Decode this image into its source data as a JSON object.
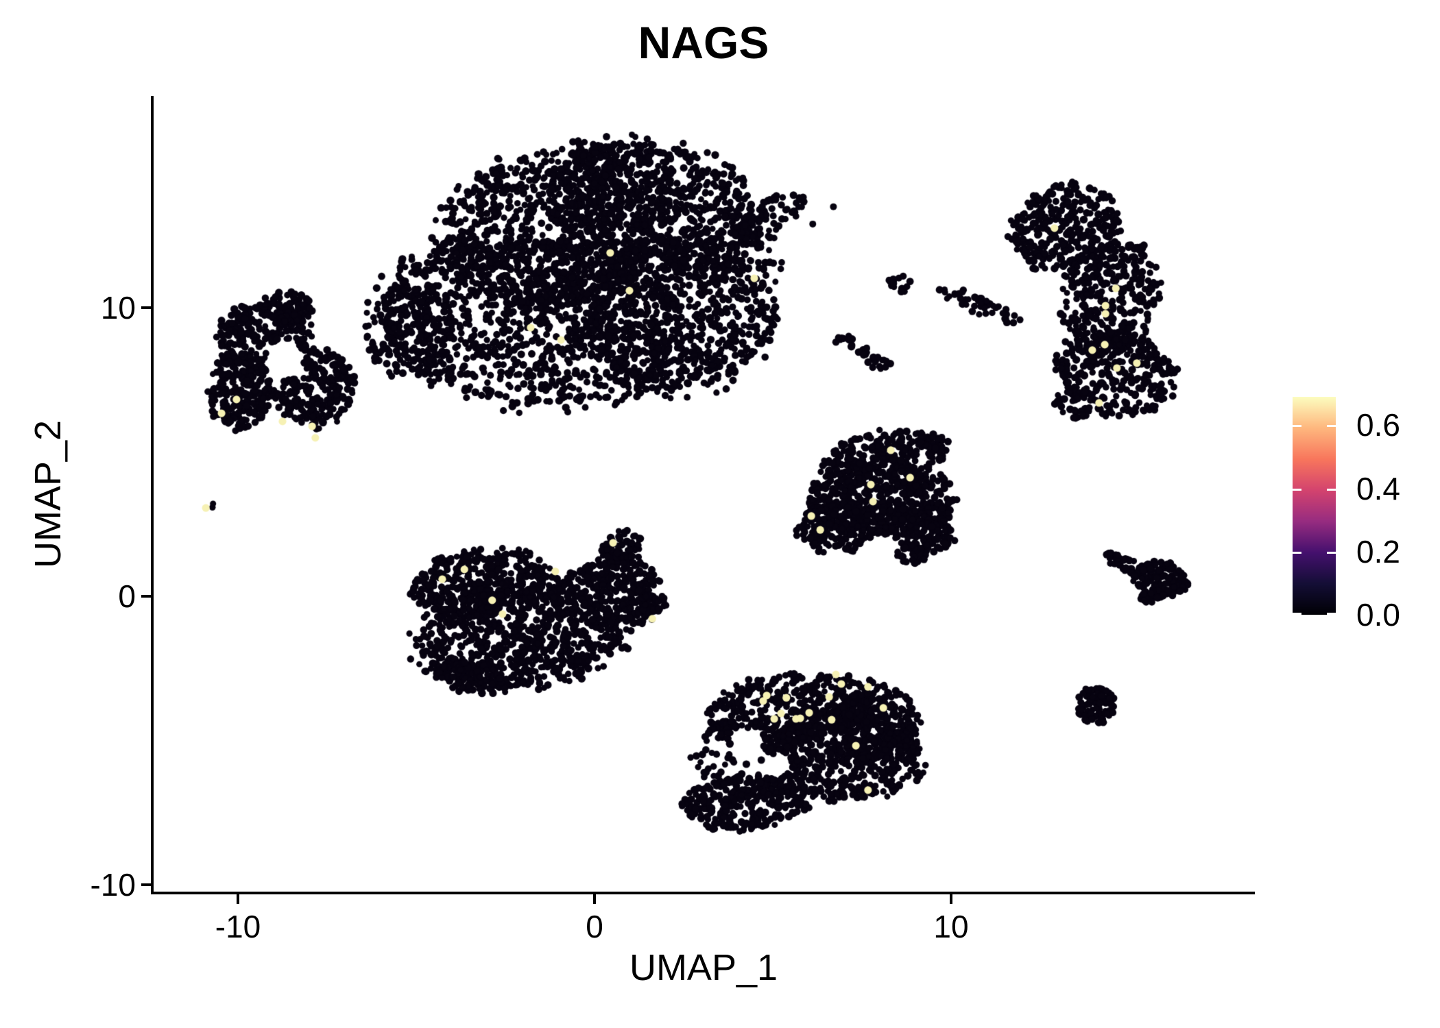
{
  "chart_data": {
    "type": "scatter",
    "title": "NAGS",
    "xlabel": "UMAP_1",
    "ylabel": "UMAP_2",
    "x_ticks": [
      -10,
      0,
      10
    ],
    "x_tick_labels": [
      "-10",
      "0",
      "10"
    ],
    "y_ticks": [
      -10,
      0,
      10
    ],
    "y_tick_labels": [
      "-10",
      "0",
      "10"
    ],
    "x_range": [
      -12.4,
      18.5
    ],
    "y_range": [
      -10.3,
      17.3
    ],
    "grid": false,
    "background": "#ffffff",
    "point_color_zero": "#070310",
    "highlight_color": "#f6f1b4",
    "colorbar": {
      "ticks": [
        0.0,
        0.2,
        0.4,
        0.6
      ],
      "tick_labels": [
        "0.0",
        "0.2",
        "0.4",
        "0.6"
      ],
      "max": 0.69,
      "palette": "magma",
      "stops": [
        "#000004",
        "#140e36",
        "#45106e",
        "#972c80",
        "#d3436e",
        "#f8765c",
        "#feb77e",
        "#fcfdbf"
      ]
    },
    "clusters": [
      {
        "name": "top-center",
        "blobs": [
          {
            "cx": -1.1,
            "cy": 12.83,
            "rx": 3.27,
            "ry": 2.61,
            "rot": 15,
            "n": 900
          },
          {
            "cx": 1.6,
            "cy": 13.54,
            "rx": 2.88,
            "ry": 2.14,
            "rot": -10,
            "n": 700
          },
          {
            "cx": -1.67,
            "cy": 9.5,
            "rx": 4.23,
            "ry": 2.85,
            "rot": -5,
            "n": 1100
          },
          {
            "cx": 2.37,
            "cy": 9.74,
            "rx": 2.5,
            "ry": 2.61,
            "rot": 0,
            "n": 700
          },
          {
            "cx": 4.87,
            "cy": 13.06,
            "rx": 1.15,
            "ry": 0.59,
            "rot": 35,
            "n": 90
          },
          {
            "cx": 4.0,
            "cy": 11.4,
            "rx": 1.3,
            "ry": 1.0,
            "rot": 0,
            "n": 45
          },
          {
            "cx": -5.13,
            "cy": 9.26,
            "rx": 1.15,
            "ry": 1.66,
            "rot": 0,
            "n": 150
          }
        ]
      },
      {
        "name": "top-right-crescent",
        "blobs": [
          {
            "cx": 13.23,
            "cy": 12.83,
            "rx": 1.54,
            "ry": 1.31,
            "rot": 20,
            "n": 300
          },
          {
            "cx": 14.48,
            "cy": 10.45,
            "rx": 1.25,
            "ry": 2.02,
            "rot": -15,
            "n": 350
          },
          {
            "cx": 14.67,
            "cy": 7.72,
            "rx": 1.63,
            "ry": 1.43,
            "rot": -10,
            "n": 300
          },
          {
            "cx": 13.52,
            "cy": 6.65,
            "rx": 0.6,
            "ry": 0.5,
            "rot": 0,
            "n": 40
          }
        ]
      },
      {
        "name": "mid-streak",
        "blobs": [
          {
            "cx": 10.73,
            "cy": 10.12,
            "rx": 1.25,
            "ry": 0.31,
            "rot": -23,
            "n": 45
          },
          {
            "cx": 8.52,
            "cy": 10.81,
            "rx": 0.35,
            "ry": 0.3,
            "rot": 0,
            "n": 15
          }
        ]
      },
      {
        "name": "mid-specks",
        "blobs": [
          {
            "cx": 6.98,
            "cy": 8.86,
            "rx": 0.3,
            "ry": 0.22,
            "rot": -20,
            "n": 12
          },
          {
            "cx": 7.52,
            "cy": 8.5,
            "rx": 0.22,
            "ry": 0.2,
            "rot": 0,
            "n": 8
          },
          {
            "cx": 8.0,
            "cy": 8.08,
            "rx": 0.3,
            "ry": 0.28,
            "rot": 0,
            "n": 14
          }
        ]
      },
      {
        "name": "left",
        "holes": [
          {
            "cx": -8.69,
            "cy": 8.19,
            "r": 0.55
          }
        ],
        "blobs": [
          {
            "cx": -9.27,
            "cy": 9.03,
            "rx": 1.25,
            "ry": 1.19,
            "rot": 0,
            "n": 260
          },
          {
            "cx": -9.94,
            "cy": 7.13,
            "rx": 0.87,
            "ry": 1.31,
            "rot": 0,
            "n": 230
          },
          {
            "cx": -7.83,
            "cy": 7.24,
            "rx": 1.06,
            "ry": 1.31,
            "rot": 0,
            "n": 260
          },
          {
            "cx": -8.6,
            "cy": 9.98,
            "rx": 0.7,
            "ry": 0.55,
            "rot": 0,
            "n": 80
          }
        ]
      },
      {
        "name": "tiny-pair",
        "blobs": [
          {
            "cx": -10.67,
            "cy": 3.16,
            "rx": 0.12,
            "ry": 0.12,
            "rot": 0,
            "n": 2
          }
        ]
      },
      {
        "name": "center-left",
        "blobs": [
          {
            "cx": -3.21,
            "cy": 0.48,
            "rx": 1.83,
            "ry": 1.07,
            "rot": 8,
            "n": 380
          },
          {
            "cx": -2.06,
            "cy": -1.43,
            "rx": 2.88,
            "ry": 1.66,
            "rot": 5,
            "n": 750
          },
          {
            "cx": 0.25,
            "cy": 0.24,
            "rx": 1.54,
            "ry": 0.95,
            "rot": 15,
            "n": 260
          },
          {
            "cx": 0.73,
            "cy": 1.66,
            "rx": 0.67,
            "ry": 0.52,
            "rot": 40,
            "n": 70
          },
          {
            "cx": 1.4,
            "cy": -0.48,
            "rx": 0.65,
            "ry": 0.43,
            "rot": 20,
            "n": 60
          },
          {
            "cx": -3.4,
            "cy": -2.85,
            "rx": 1.0,
            "ry": 0.5,
            "rot": -10,
            "n": 100
          }
        ]
      },
      {
        "name": "middle-right-triangle",
        "blobs": [
          {
            "cx": 8.13,
            "cy": 4.87,
            "rx": 1.73,
            "ry": 0.83,
            "rot": 8,
            "n": 260
          },
          {
            "cx": 8.04,
            "cy": 3.33,
            "rx": 2.02,
            "ry": 1.19,
            "rot": 0,
            "n": 480
          },
          {
            "cx": 6.79,
            "cy": 2.38,
            "rx": 1.06,
            "ry": 0.83,
            "rot": 0,
            "n": 180
          },
          {
            "cx": 9.19,
            "cy": 2.26,
            "rx": 0.87,
            "ry": 0.71,
            "rot": -20,
            "n": 140
          },
          {
            "cx": 8.9,
            "cy": 1.43,
            "rx": 0.4,
            "ry": 0.3,
            "rot": 0,
            "n": 30
          }
        ]
      },
      {
        "name": "bottom-center",
        "holes": [
          {
            "cx": 4.3,
            "cy": -5.2,
            "r": 0.45
          },
          {
            "cx": 5.1,
            "cy": -5.9,
            "r": 0.35
          }
        ],
        "blobs": [
          {
            "cx": 5.44,
            "cy": -3.8,
            "rx": 2.31,
            "ry": 1.07,
            "rot": 8,
            "n": 380
          },
          {
            "cx": 4.58,
            "cy": -5.58,
            "rx": 1.73,
            "ry": 1.43,
            "rot": 0,
            "n": 140
          },
          {
            "cx": 6.98,
            "cy": -5.46,
            "rx": 2.12,
            "ry": 1.54,
            "rot": -5,
            "n": 550
          },
          {
            "cx": 4.29,
            "cy": -7.13,
            "rx": 1.73,
            "ry": 0.95,
            "rot": 8,
            "n": 300
          },
          {
            "cx": 7.94,
            "cy": -4.39,
            "rx": 1.15,
            "ry": 1.19,
            "rot": 0,
            "n": 250
          }
        ]
      },
      {
        "name": "right-arrow",
        "blobs": [
          {
            "cx": 14.87,
            "cy": 1.14,
            "rx": 0.58,
            "ry": 0.24,
            "rot": -25,
            "n": 45
          },
          {
            "cx": 15.87,
            "cy": 0.59,
            "rx": 0.73,
            "ry": 0.59,
            "rot": -10,
            "n": 140
          },
          {
            "cx": 15.63,
            "cy": 0.0,
            "rx": 0.3,
            "ry": 0.25,
            "rot": 0,
            "n": 25
          }
        ]
      },
      {
        "name": "small-round-right",
        "blobs": [
          {
            "cx": 14.08,
            "cy": -3.8,
            "rx": 0.52,
            "ry": 0.62,
            "rot": 0,
            "n": 95
          }
        ]
      }
    ],
    "stray_points": [
      {
        "x": 6.7,
        "y": 13.5
      },
      {
        "x": 6.12,
        "y": 12.9
      }
    ],
    "highlighted_cells": [
      {
        "x": 0.44,
        "y": 11.9,
        "value": 0.6
      },
      {
        "x": 0.98,
        "y": 10.59,
        "value": 0.6
      },
      {
        "x": -1.79,
        "y": 9.31,
        "value": 0.6
      },
      {
        "x": -0.94,
        "y": 8.88,
        "value": 0.6
      },
      {
        "x": 4.48,
        "y": 11.02,
        "value": 0.6
      },
      {
        "x": 12.9,
        "y": 12.76,
        "value": 0.6
      },
      {
        "x": 14.62,
        "y": 10.67,
        "value": 0.6
      },
      {
        "x": 14.33,
        "y": 10.07,
        "value": 0.6
      },
      {
        "x": 14.33,
        "y": 9.79,
        "value": 0.6
      },
      {
        "x": 14.31,
        "y": 8.72,
        "value": 0.6
      },
      {
        "x": 13.96,
        "y": 8.53,
        "value": 0.6
      },
      {
        "x": 14.65,
        "y": 7.91,
        "value": 0.6
      },
      {
        "x": 15.21,
        "y": 8.08,
        "value": 0.6
      },
      {
        "x": 14.15,
        "y": 6.7,
        "value": 0.6
      },
      {
        "x": -10.04,
        "y": 6.82,
        "value": 0.6
      },
      {
        "x": -10.46,
        "y": 6.34,
        "value": 0.6
      },
      {
        "x": -8.75,
        "y": 6.06,
        "value": 0.6
      },
      {
        "x": -7.92,
        "y": 5.89,
        "value": 0.6
      },
      {
        "x": -7.83,
        "y": 5.49,
        "value": 0.6
      },
      {
        "x": -10.9,
        "y": 3.06,
        "value": 0.6
      },
      {
        "x": 0.52,
        "y": 1.85,
        "value": 0.6
      },
      {
        "x": -3.65,
        "y": 0.93,
        "value": 0.6
      },
      {
        "x": -4.27,
        "y": 0.59,
        "value": 0.6
      },
      {
        "x": -1.1,
        "y": 0.86,
        "value": 0.6
      },
      {
        "x": -2.87,
        "y": -0.14,
        "value": 0.6
      },
      {
        "x": -2.58,
        "y": -0.62,
        "value": 0.6
      },
      {
        "x": 1.62,
        "y": -0.78,
        "value": 0.6
      },
      {
        "x": 8.31,
        "y": 5.06,
        "value": 0.6
      },
      {
        "x": 8.85,
        "y": 4.11,
        "value": 0.6
      },
      {
        "x": 7.75,
        "y": 3.87,
        "value": 0.6
      },
      {
        "x": 7.81,
        "y": 3.28,
        "value": 0.6
      },
      {
        "x": 6.08,
        "y": 2.78,
        "value": 0.6
      },
      {
        "x": 6.33,
        "y": 2.3,
        "value": 0.6
      },
      {
        "x": 6.77,
        "y": -2.71,
        "value": 0.6
      },
      {
        "x": 6.92,
        "y": -3.04,
        "value": 0.6
      },
      {
        "x": 7.67,
        "y": -3.14,
        "value": 0.65
      },
      {
        "x": 6.58,
        "y": -3.49,
        "value": 0.6
      },
      {
        "x": 4.83,
        "y": -3.44,
        "value": 0.6
      },
      {
        "x": 4.73,
        "y": -3.63,
        "value": 0.6
      },
      {
        "x": 5.38,
        "y": -3.52,
        "value": 0.6
      },
      {
        "x": 5.23,
        "y": -4.06,
        "value": 0.6
      },
      {
        "x": 5.04,
        "y": -4.25,
        "value": 0.6
      },
      {
        "x": 5.65,
        "y": -4.25,
        "value": 0.6
      },
      {
        "x": 5.77,
        "y": -4.23,
        "value": 0.6
      },
      {
        "x": 6.02,
        "y": -4.04,
        "value": 0.6
      },
      {
        "x": 6.65,
        "y": -4.28,
        "value": 0.6
      },
      {
        "x": 8.1,
        "y": -3.87,
        "value": 0.6
      },
      {
        "x": 7.33,
        "y": -5.18,
        "value": 0.6
      },
      {
        "x": 7.67,
        "y": -6.72,
        "value": 0.6
      }
    ]
  }
}
